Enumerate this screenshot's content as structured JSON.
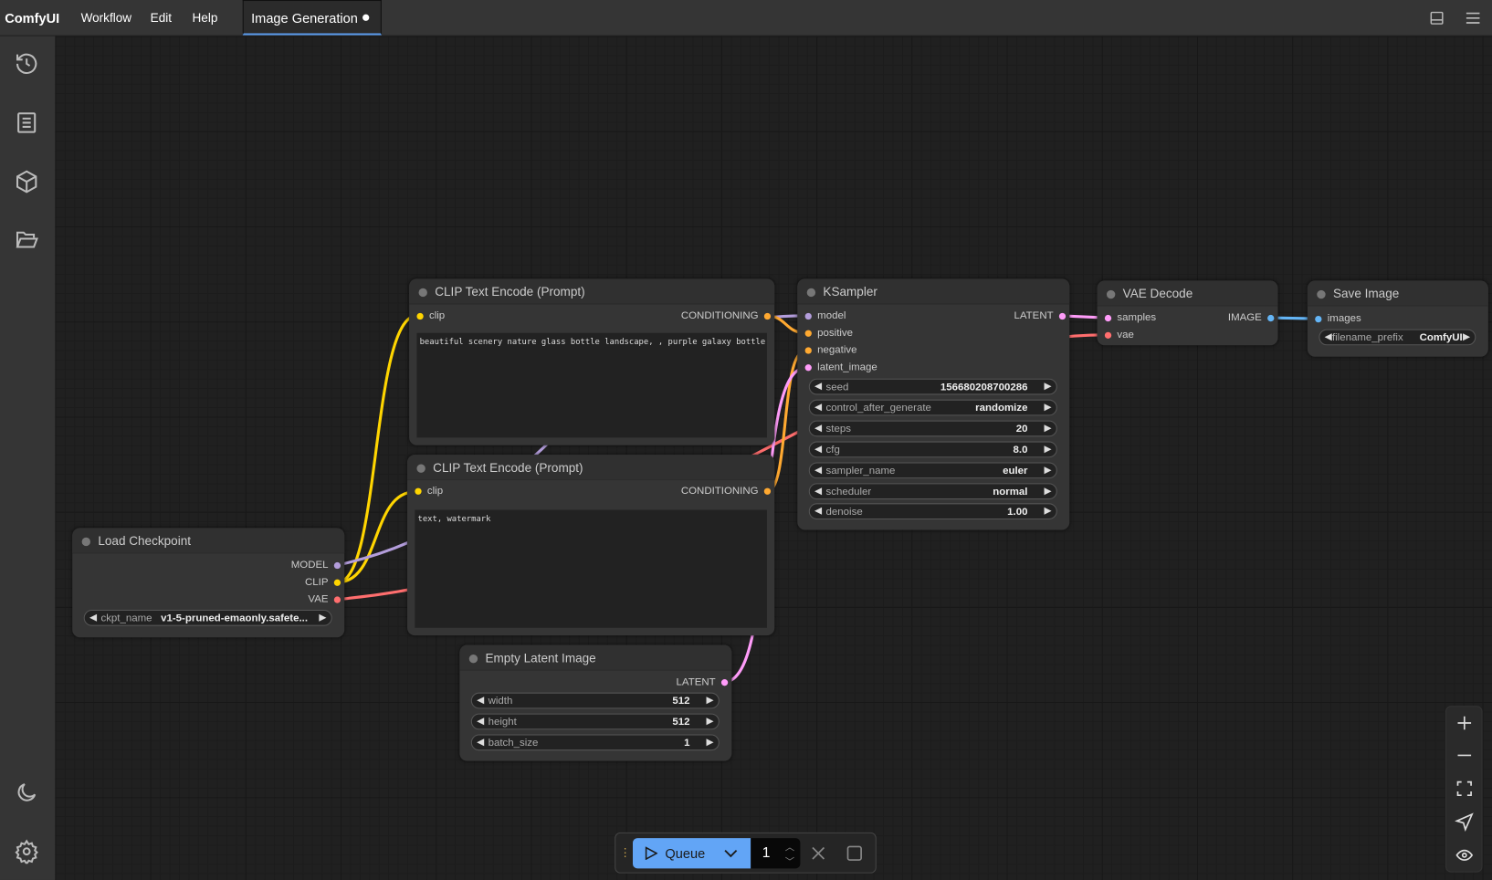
{
  "topbar": {
    "brand": "ComfyUI",
    "menu": [
      "Workflow",
      "Edit",
      "Help"
    ],
    "tab": "Image Generation",
    "tab_unsaved": true
  },
  "colors": {
    "clip": "#ffd500",
    "model": "#b39ddb",
    "vae": "#ff6e6e",
    "conditioning": "#ffa931",
    "latent": "#ff9cf9",
    "image": "#64b5f6",
    "accent": "#62a5f6"
  },
  "nodes": {
    "load_checkpoint": {
      "title": "Load Checkpoint",
      "outputs": [
        "MODEL",
        "CLIP",
        "VAE"
      ],
      "ckpt_label": "ckpt_name",
      "ckpt_value": "v1-5-pruned-emaonly.safete..."
    },
    "clip_pos": {
      "title": "CLIP Text Encode (Prompt)",
      "input": "clip",
      "output": "CONDITIONING",
      "text": "beautiful scenery nature glass bottle landscape, , purple galaxy bottle,"
    },
    "clip_neg": {
      "title": "CLIP Text Encode (Prompt)",
      "input": "clip",
      "output": "CONDITIONING",
      "text": "text, watermark"
    },
    "ksampler": {
      "title": "KSampler",
      "inputs": [
        "model",
        "positive",
        "negative",
        "latent_image"
      ],
      "output": "LATENT",
      "widgets": [
        {
          "label": "seed",
          "value": "156680208700286"
        },
        {
          "label": "control_after_generate",
          "value": "randomize"
        },
        {
          "label": "steps",
          "value": "20"
        },
        {
          "label": "cfg",
          "value": "8.0"
        },
        {
          "label": "sampler_name",
          "value": "euler"
        },
        {
          "label": "scheduler",
          "value": "normal"
        },
        {
          "label": "denoise",
          "value": "1.00"
        }
      ]
    },
    "vae_decode": {
      "title": "VAE Decode",
      "inputs": [
        "samples",
        "vae"
      ],
      "output": "IMAGE"
    },
    "save_image": {
      "title": "Save Image",
      "input": "images",
      "widget_label": "filename_prefix",
      "widget_value": "ComfyUI"
    },
    "empty_latent": {
      "title": "Empty Latent Image",
      "output": "LATENT",
      "widgets": [
        {
          "label": "width",
          "value": "512"
        },
        {
          "label": "height",
          "value": "512"
        },
        {
          "label": "batch_size",
          "value": "1"
        }
      ]
    }
  },
  "queue": {
    "label": "Queue",
    "count": "1"
  }
}
